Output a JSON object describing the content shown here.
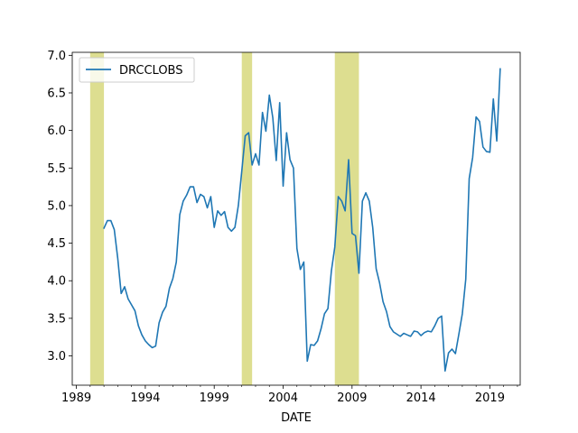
{
  "chart_data": {
    "type": "line",
    "title": "",
    "xlabel": "DATE",
    "ylabel": "",
    "xlim": [
      1988.7,
      2021.2
    ],
    "ylim": [
      2.61,
      7.04
    ],
    "grid": false,
    "legend_position": "top-left",
    "x_ticks": [
      {
        "value": 1989,
        "label": "1989"
      },
      {
        "value": 1994,
        "label": "1994"
      },
      {
        "value": 1999,
        "label": "1999"
      },
      {
        "value": 2004,
        "label": "2004"
      },
      {
        "value": 2009,
        "label": "2009"
      },
      {
        "value": 2014,
        "label": "2014"
      },
      {
        "value": 2019,
        "label": "2019"
      }
    ],
    "x_minor_ticks": [
      1990,
      1991,
      1992,
      1993,
      1995,
      1996,
      1997,
      1998,
      2000,
      2001,
      2002,
      2003,
      2005,
      2006,
      2007,
      2008,
      2010,
      2011,
      2012,
      2013,
      2015,
      2016,
      2017,
      2018,
      2020,
      2021
    ],
    "y_ticks": [
      {
        "value": 3.0,
        "label": "3.0"
      },
      {
        "value": 3.5,
        "label": "3.5"
      },
      {
        "value": 4.0,
        "label": "4.0"
      },
      {
        "value": 4.5,
        "label": "4.5"
      },
      {
        "value": 5.0,
        "label": "5.0"
      },
      {
        "value": 5.5,
        "label": "5.5"
      },
      {
        "value": 6.0,
        "label": "6.0"
      },
      {
        "value": 6.5,
        "label": "6.5"
      },
      {
        "value": 7.0,
        "label": "7.0"
      }
    ],
    "recessions": [
      {
        "start": 1990.0,
        "end": 1991.0
      },
      {
        "start": 2001.0,
        "end": 2001.75
      },
      {
        "start": 2007.75,
        "end": 2009.5
      }
    ],
    "series": [
      {
        "name": "DRCCLOBS",
        "color": "#1f77b4",
        "x": [
          1991.0,
          1991.25,
          1991.5,
          1991.75,
          1992.0,
          1992.25,
          1992.5,
          1992.75,
          1993.0,
          1993.25,
          1993.5,
          1993.75,
          1994.0,
          1994.25,
          1994.5,
          1994.75,
          1995.0,
          1995.25,
          1995.5,
          1995.75,
          1996.0,
          1996.25,
          1996.5,
          1996.75,
          1997.0,
          1997.25,
          1997.5,
          1997.75,
          1998.0,
          1998.25,
          1998.5,
          1998.75,
          1999.0,
          1999.25,
          1999.5,
          1999.75,
          2000.0,
          2000.25,
          2000.5,
          2000.75,
          2001.0,
          2001.25,
          2001.5,
          2001.75,
          2002.0,
          2002.25,
          2002.5,
          2002.75,
          2003.0,
          2003.25,
          2003.5,
          2003.75,
          2004.0,
          2004.25,
          2004.5,
          2004.75,
          2005.0,
          2005.25,
          2005.5,
          2005.75,
          2006.0,
          2006.25,
          2006.5,
          2006.75,
          2007.0,
          2007.25,
          2007.5,
          2007.75,
          2008.0,
          2008.25,
          2008.5,
          2008.75,
          2009.0,
          2009.25,
          2009.5,
          2009.75,
          2010.0,
          2010.25,
          2010.5,
          2010.75,
          2011.0,
          2011.25,
          2011.5,
          2011.75,
          2012.0,
          2012.25,
          2012.5,
          2012.75,
          2013.0,
          2013.25,
          2013.5,
          2013.75,
          2014.0,
          2014.25,
          2014.5,
          2014.75,
          2015.0,
          2015.25,
          2015.5,
          2015.75,
          2016.0,
          2016.25,
          2016.5,
          2016.75,
          2017.0,
          2017.25,
          2017.5,
          2017.75,
          2018.0,
          2018.25,
          2018.5,
          2018.75,
          2019.0,
          2019.25,
          2019.5,
          2019.75
        ],
        "values": [
          4.7,
          4.8,
          4.8,
          4.68,
          4.3,
          3.83,
          3.92,
          3.76,
          3.68,
          3.6,
          3.4,
          3.28,
          3.2,
          3.15,
          3.11,
          3.13,
          3.44,
          3.58,
          3.66,
          3.9,
          4.03,
          4.25,
          4.88,
          5.06,
          5.14,
          5.25,
          5.25,
          5.04,
          5.15,
          5.12,
          4.97,
          5.12,
          4.71,
          4.93,
          4.87,
          4.92,
          4.71,
          4.66,
          4.71,
          5.0,
          5.46,
          5.93,
          5.97,
          5.54,
          5.69,
          5.54,
          6.24,
          5.99,
          6.47,
          6.17,
          5.6,
          6.37,
          5.26,
          5.97,
          5.61,
          5.5,
          4.43,
          4.15,
          4.25,
          2.93,
          3.15,
          3.14,
          3.2,
          3.36,
          3.56,
          3.63,
          4.13,
          4.45,
          5.12,
          5.06,
          4.93,
          5.61,
          4.63,
          4.6,
          4.1,
          5.06,
          5.17,
          5.06,
          4.71,
          4.16,
          3.97,
          3.72,
          3.59,
          3.39,
          3.32,
          3.29,
          3.26,
          3.3,
          3.28,
          3.26,
          3.33,
          3.32,
          3.27,
          3.31,
          3.33,
          3.32,
          3.4,
          3.5,
          3.53,
          2.8,
          3.04,
          3.09,
          3.03,
          3.29,
          3.56,
          4.02,
          5.36,
          5.64,
          6.18,
          6.12,
          5.78,
          5.72,
          5.71,
          6.42,
          5.86,
          6.82
        ]
      }
    ]
  }
}
